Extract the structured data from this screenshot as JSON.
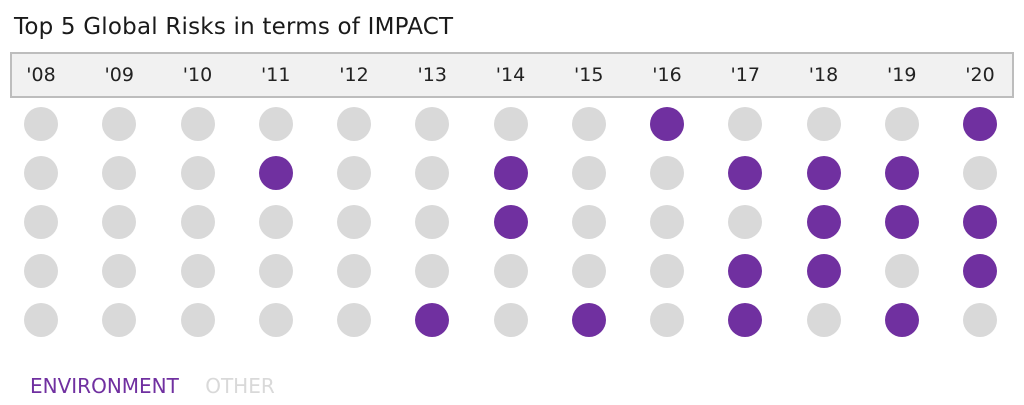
{
  "chart_data": {
    "type": "dot-matrix",
    "title": "Top 5 Global Risks in terms of IMPACT",
    "x": [
      "'08",
      "'09",
      "'10",
      "'11",
      "'12",
      "'13",
      "'14",
      "'15",
      "'16",
      "'17",
      "'18",
      "'19",
      "'20"
    ],
    "ranks": [
      1,
      2,
      3,
      4,
      5
    ],
    "categories": [
      "ENVIRONMENT",
      "OTHER"
    ],
    "category_colors": {
      "ENVIRONMENT": "#7030a0",
      "OTHER": "#d9d9d9"
    },
    "grid": [
      [
        "OTHER",
        "OTHER",
        "OTHER",
        "OTHER",
        "OTHER",
        "OTHER",
        "OTHER",
        "OTHER",
        "ENVIRONMENT",
        "OTHER",
        "OTHER",
        "OTHER",
        "ENVIRONMENT"
      ],
      [
        "OTHER",
        "OTHER",
        "OTHER",
        "ENVIRONMENT",
        "OTHER",
        "OTHER",
        "ENVIRONMENT",
        "OTHER",
        "OTHER",
        "ENVIRONMENT",
        "ENVIRONMENT",
        "ENVIRONMENT",
        "OTHER"
      ],
      [
        "OTHER",
        "OTHER",
        "OTHER",
        "OTHER",
        "OTHER",
        "OTHER",
        "ENVIRONMENT",
        "OTHER",
        "OTHER",
        "OTHER",
        "ENVIRONMENT",
        "ENVIRONMENT",
        "ENVIRONMENT"
      ],
      [
        "OTHER",
        "OTHER",
        "OTHER",
        "OTHER",
        "OTHER",
        "OTHER",
        "OTHER",
        "OTHER",
        "OTHER",
        "ENVIRONMENT",
        "ENVIRONMENT",
        "OTHER",
        "ENVIRONMENT"
      ],
      [
        "OTHER",
        "OTHER",
        "OTHER",
        "OTHER",
        "OTHER",
        "ENVIRONMENT",
        "OTHER",
        "ENVIRONMENT",
        "OTHER",
        "ENVIRONMENT",
        "OTHER",
        "ENVIRONMENT",
        "OTHER"
      ]
    ],
    "legend": {
      "position": "bottom-left",
      "items": [
        {
          "label": "ENVIRONMENT",
          "color": "#7030a0"
        },
        {
          "label": "OTHER",
          "color": "#d9d9d9"
        }
      ]
    }
  }
}
